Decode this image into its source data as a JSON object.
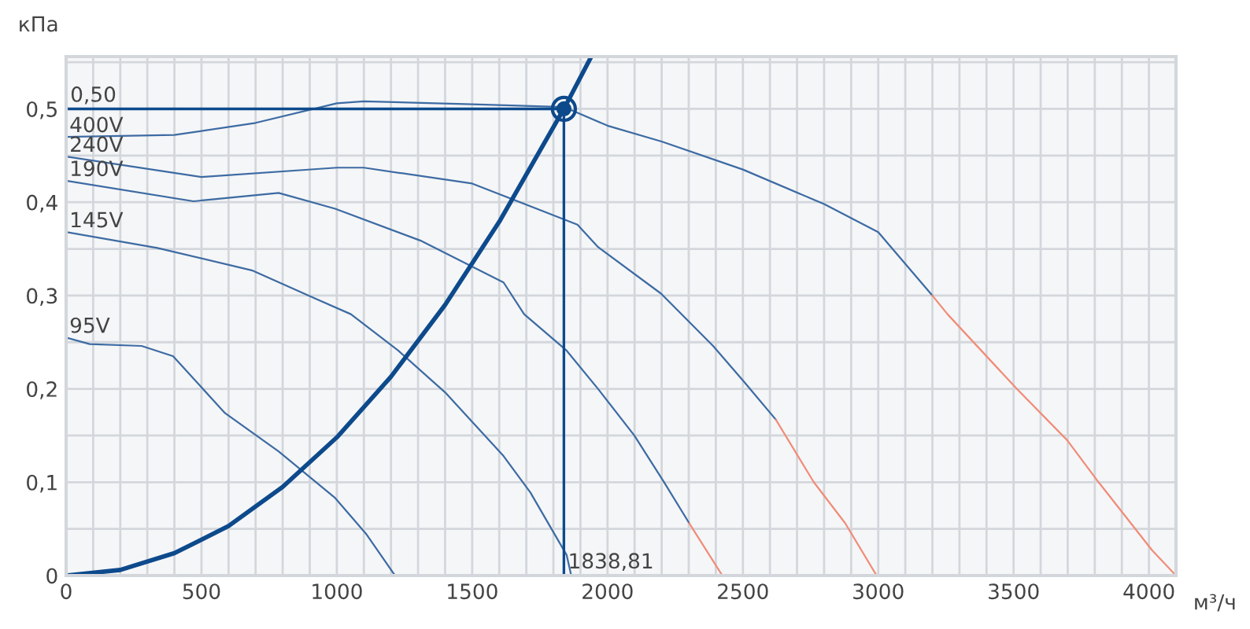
{
  "chart_data": {
    "type": "line",
    "xlabel": "м³/ч",
    "ylabel": "кПа",
    "xlim": [
      0,
      4100
    ],
    "ylim": [
      0,
      0.556
    ],
    "xticks": [
      0,
      {
        "value": 100,
        "label": null
      },
      {
        "value": 200,
        "label": null
      },
      {
        "value": 300,
        "label": null
      },
      {
        "value": 400,
        "label": null
      },
      500,
      {
        "value": 600,
        "label": null
      },
      {
        "value": 700,
        "label": null
      },
      {
        "value": 800,
        "label": null
      },
      {
        "value": 900,
        "label": null
      },
      1000,
      {
        "value": 1100,
        "label": null
      },
      {
        "value": 1200,
        "label": null
      },
      {
        "value": 1300,
        "label": null
      },
      {
        "value": 1400,
        "label": null
      },
      1500,
      {
        "value": 1600,
        "label": null
      },
      {
        "value": 1700,
        "label": null
      },
      {
        "value": 1800,
        "label": null
      },
      {
        "value": 1900,
        "label": null
      },
      2000,
      {
        "value": 2100,
        "label": null
      },
      {
        "value": 2200,
        "label": null
      },
      {
        "value": 2300,
        "label": null
      },
      {
        "value": 2400,
        "label": null
      },
      2500,
      {
        "value": 2600,
        "label": null
      },
      {
        "value": 2700,
        "label": null
      },
      {
        "value": 2800,
        "label": null
      },
      {
        "value": 2900,
        "label": null
      },
      3000,
      {
        "value": 3100,
        "label": null
      },
      {
        "value": 3200,
        "label": null
      },
      {
        "value": 3300,
        "label": null
      },
      {
        "value": 3400,
        "label": null
      },
      3500,
      {
        "value": 3600,
        "label": null
      },
      {
        "value": 3700,
        "label": null
      },
      {
        "value": 3800,
        "label": null
      },
      {
        "value": 3900,
        "label": null
      },
      4000
    ],
    "yticks": [
      0,
      {
        "value": 0.05,
        "label": null
      },
      {
        "value": 0.1,
        "label": "0,1"
      },
      {
        "value": 0.15,
        "label": null
      },
      {
        "value": 0.2,
        "label": "0,2"
      },
      {
        "value": 0.25,
        "label": null
      },
      {
        "value": 0.3,
        "label": "0,3"
      },
      {
        "value": 0.35,
        "label": null
      },
      {
        "value": 0.4,
        "label": "0,4"
      },
      {
        "value": 0.45,
        "label": null
      },
      {
        "value": 0.5,
        "label": "0,5"
      },
      {
        "value": 0.55,
        "label": null
      }
    ],
    "grid": true,
    "marker": "none",
    "line_style": "solid",
    "series": [
      {
        "name": "400V",
        "color": "#3d6ba3",
        "x": [
          0,
          400,
          700,
          1000,
          1100,
          1500,
          1838.81,
          2000,
          2200,
          2500,
          2800,
          3000,
          3200
        ],
        "values": [
          0.47,
          0.472,
          0.485,
          0.506,
          0.508,
          0.505,
          0.502,
          0.482,
          0.465,
          0.435,
          0.398,
          0.368,
          0.3
        ]
      },
      {
        "color": "#f08c78",
        "x": [
          3200,
          3256,
          3512,
          3698,
          3814,
          4012,
          4100
        ],
        "values": [
          0.3,
          0.28,
          0.2,
          0.145,
          0.1,
          0.027,
          0
        ]
      },
      {
        "name": "240V",
        "color": "#3d6ba3",
        "x": [
          0,
          500,
          1000,
          1100,
          1500,
          1889,
          1965,
          2198,
          2390,
          2506,
          2622
        ],
        "values": [
          0.449,
          0.427,
          0.437,
          0.437,
          0.42,
          0.376,
          0.352,
          0.302,
          0.246,
          0.207,
          0.167
        ]
      },
      {
        "color": "#f08c78",
        "x": [
          2622,
          2762,
          2878,
          2994
        ],
        "values": [
          0.167,
          0.1,
          0.056,
          0
        ]
      },
      {
        "name": "190V",
        "color": "#3d6ba3",
        "x": [
          0,
          471,
          785,
          994,
          1308,
          1616,
          1692,
          1849,
          1965,
          2099,
          2209,
          2302
        ],
        "values": [
          0.423,
          0.401,
          0.41,
          0.393,
          0.359,
          0.314,
          0.28,
          0.241,
          0.2,
          0.15,
          0.1,
          0.056
        ]
      },
      {
        "color": "#f08c78",
        "x": [
          2302,
          2424
        ],
        "values": [
          0.056,
          0
        ]
      },
      {
        "name": "145V",
        "color": "#3d6ba3",
        "x": [
          0,
          337,
          686,
          919,
          1052,
          1227,
          1401,
          1616,
          1715,
          1849,
          1866
        ],
        "values": [
          0.368,
          0.351,
          0.327,
          0.297,
          0.28,
          0.241,
          0.196,
          0.128,
          0.089,
          0.022,
          0
        ]
      },
      {
        "name": "95V",
        "color": "#3d6ba3",
        "x": [
          0,
          87,
          279,
          395,
          587,
          785,
          994,
          1110,
          1215
        ],
        "values": [
          0.255,
          0.248,
          0.246,
          0.235,
          0.174,
          0.133,
          0.083,
          0.044,
          0
        ]
      },
      {
        "color": "#0d4a8c",
        "x": [
          0,
          200,
          400,
          600,
          800,
          1000,
          1200,
          1400,
          1600,
          1838.81,
          1940
        ],
        "values": [
          0,
          0.006,
          0.024,
          0.053,
          0.095,
          0.148,
          0.213,
          0.29,
          0.379,
          0.5,
          0.556
        ]
      },
      {
        "type": "scatter",
        "color": "#0d4a8c",
        "x": [
          1838.81
        ],
        "values": [
          0.5
        ],
        "marker": "circle"
      }
    ],
    "ref_lines": [
      {
        "axis": "y",
        "value": 0.5,
        "label": "0,50",
        "color": "#0d4a8c"
      },
      {
        "axis": "x",
        "value": 1838.81,
        "label": "1838,81",
        "color": "#0d4a8c"
      }
    ]
  }
}
